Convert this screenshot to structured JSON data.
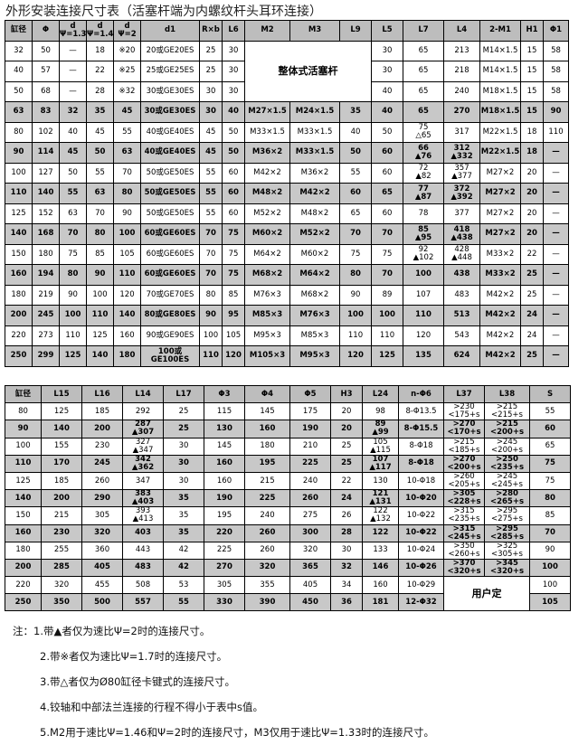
{
  "title": "外形安装连接尺寸表（活塞杆端为内螺纹杆头耳环连接）",
  "table1": {
    "headers": [
      "缸径",
      "Φ",
      "d\nΨ=1.33",
      "d\nΨ=1.46",
      "d\nΨ=2",
      "d1",
      "R×b",
      "L6",
      "M2",
      "M3",
      "L9",
      "L5",
      "L7",
      "L4",
      "2-M1",
      "H1",
      "Φ1"
    ],
    "rows": [
      [
        "32",
        "50",
        "—",
        "18",
        "※20",
        "20或GE20ES",
        "25",
        "30",
        "整体式活塞杆",
        "30",
        "65",
        "213",
        "M14×1.5",
        "15",
        "58"
      ],
      [
        "40",
        "57",
        "—",
        "22",
        "※25",
        "25或GE25ES",
        "25",
        "30",
        "30",
        "65",
        "218",
        "M14×1.5",
        "15",
        "58"
      ],
      [
        "50",
        "68",
        "—",
        "28",
        "※32",
        "30或GE30ES",
        "30",
        "30",
        "40",
        "65",
        "240",
        "M18×1.5",
        "15",
        "58"
      ],
      [
        "63",
        "83",
        "32",
        "35",
        "45",
        "30或GE30ES",
        "30",
        "40",
        "M27×1.5",
        "M24×1.5",
        "35",
        "40",
        "65",
        "270",
        "M18×1.5",
        "15",
        "90"
      ],
      [
        "80",
        "102",
        "40",
        "45",
        "55",
        "40或GE40ES",
        "45",
        "50",
        "M33×1.5",
        "M33×1.5",
        "40",
        "50",
        "75\n△65",
        "317",
        "M22×1.5",
        "18",
        "110"
      ],
      [
        "90",
        "114",
        "45",
        "50",
        "63",
        "40或GE40ES",
        "45",
        "50",
        "M36×2",
        "M33×1.5",
        "50",
        "60",
        "66\n▲76",
        "312\n▲332",
        "M22×1.5",
        "18",
        "—"
      ],
      [
        "100",
        "127",
        "50",
        "55",
        "70",
        "50或GE50ES",
        "55",
        "60",
        "M42×2",
        "M36×2",
        "55",
        "60",
        "72\n▲82",
        "357\n▲377",
        "M27×2",
        "20",
        "—"
      ],
      [
        "110",
        "140",
        "55",
        "63",
        "80",
        "50或GE50ES",
        "55",
        "60",
        "M48×2",
        "M42×2",
        "60",
        "65",
        "77\n▲87",
        "372\n▲392",
        "M27×2",
        "20",
        "—"
      ],
      [
        "125",
        "152",
        "63",
        "70",
        "90",
        "50或GE50ES",
        "55",
        "60",
        "M52×2",
        "M48×2",
        "65",
        "60",
        "78",
        "377",
        "M27×2",
        "20",
        "—"
      ],
      [
        "140",
        "168",
        "70",
        "80",
        "100",
        "60或GE60ES",
        "70",
        "75",
        "M60×2",
        "M52×2",
        "70",
        "70",
        "85\n▲95",
        "418\n▲438",
        "M27×2",
        "20",
        "—"
      ],
      [
        "150",
        "180",
        "75",
        "85",
        "105",
        "60或GE60ES",
        "70",
        "75",
        "M64×2",
        "M60×2",
        "75",
        "75",
        "92\n▲102",
        "428\n▲448",
        "M33×2",
        "22",
        "—"
      ],
      [
        "160",
        "194",
        "80",
        "90",
        "110",
        "60或GE60ES",
        "70",
        "75",
        "M68×2",
        "M64×2",
        "80",
        "70",
        "100",
        "438",
        "M33×2",
        "25",
        "—"
      ],
      [
        "180",
        "219",
        "90",
        "100",
        "120",
        "70或GE70ES",
        "80",
        "85",
        "M76×3",
        "M68×2",
        "90",
        "89",
        "107",
        "483",
        "M42×2",
        "25",
        "—"
      ],
      [
        "200",
        "245",
        "100",
        "110",
        "140",
        "80或GE80ES",
        "90",
        "95",
        "M85×3",
        "M76×3",
        "100",
        "100",
        "110",
        "513",
        "M42×2",
        "24",
        "—"
      ],
      [
        "220",
        "273",
        "110",
        "125",
        "160",
        "90或GE90ES",
        "100",
        "105",
        "M95×3",
        "M85×3",
        "110",
        "110",
        "120",
        "543",
        "M42×2",
        "24",
        "—"
      ],
      [
        "250",
        "299",
        "125",
        "140",
        "180",
        "100或GE100ES",
        "110",
        "120",
        "M105×3",
        "M95×3",
        "120",
        "125",
        "135",
        "624",
        "M42×2",
        "25",
        "—"
      ]
    ]
  },
  "table2": {
    "headers": [
      "缸径",
      "L15",
      "L16",
      "L14",
      "L17",
      "Φ3",
      "Φ4",
      "Φ5",
      "H3",
      "L24",
      "n-Φ6",
      "L37",
      "L38",
      "S"
    ],
    "rows": [
      [
        "80",
        "125",
        "185",
        "292",
        "25",
        "115",
        "145",
        "175",
        "20",
        "98",
        "8-Φ13.5",
        ">230\n<175+s",
        ">215\n<215+s",
        "55"
      ],
      [
        "90",
        "140",
        "200",
        "287\n▲307",
        "25",
        "130",
        "160",
        "190",
        "20",
        "89\n▲99",
        "8-Φ15.5",
        ">270\n<170+s",
        ">215\n<200+s",
        "60"
      ],
      [
        "100",
        "155",
        "230",
        "327\n▲347",
        "30",
        "145",
        "180",
        "210",
        "25",
        "105\n▲115",
        "8-Φ18",
        ">215\n<185+s",
        ">245\n<200+s",
        "65"
      ],
      [
        "110",
        "170",
        "245",
        "342\n▲362",
        "30",
        "160",
        "195",
        "225",
        "25",
        "107\n▲117",
        "8-Φ18",
        ">270\n<200+s",
        ">250\n<235+s",
        "75"
      ],
      [
        "125",
        "185",
        "260",
        "347",
        "30",
        "160",
        "215",
        "240",
        "22",
        "130",
        "10-Φ18",
        ">260\n<205+s",
        ">245\n<245+s",
        "75"
      ],
      [
        "140",
        "200",
        "290",
        "383\n▲403",
        "35",
        "190",
        "225",
        "260",
        "24",
        "121\n▲131",
        "10-Φ20",
        ">305\n<228+s",
        ">280\n<265+s",
        "80"
      ],
      [
        "150",
        "215",
        "305",
        "393\n▲413",
        "35",
        "195",
        "240",
        "275",
        "26",
        "122\n▲132",
        "10-Φ22",
        ">315\n<235+s",
        ">295\n<275+s",
        "85"
      ],
      [
        "160",
        "230",
        "320",
        "403",
        "35",
        "220",
        "260",
        "300",
        "28",
        "122",
        "10-Φ22",
        ">315\n<245+s",
        ">295\n<285+s",
        "70"
      ],
      [
        "180",
        "255",
        "360",
        "443",
        "42",
        "225",
        "260",
        "320",
        "30",
        "133",
        "10-Φ24",
        ">350\n<260+s",
        ">325\n<305+s",
        "90"
      ],
      [
        "200",
        "285",
        "405",
        "483",
        "42",
        "270",
        "320",
        "365",
        "32",
        "146",
        "10-Φ26",
        ">370\n<320+s",
        ">345\n<320+s",
        "100"
      ],
      [
        "220",
        "320",
        "455",
        "508",
        "53",
        "305",
        "355",
        "405",
        "34",
        "160",
        "10-Φ29",
        "用户定",
        "100"
      ],
      [
        "250",
        "350",
        "500",
        "557",
        "55",
        "330",
        "390",
        "450",
        "36",
        "181",
        "12-Φ32",
        "105"
      ]
    ]
  },
  "notes": {
    "label": "注：",
    "items": [
      "1.带▲者仅为速比Ψ=2时的连接尺寸。",
      "2.带※者仅为速比Ψ=1.7时的连接尺寸。",
      "3.带△者仅为Ø80缸径卡键式的连接尺寸。",
      "4.铰轴和中部法兰连接的行程不得小于表中s值。",
      "5.M2用于速比Ψ=1.46和Ψ=2时的连接尺寸，M3仅用于速比Ψ=1.33时的连接尺寸。"
    ]
  }
}
